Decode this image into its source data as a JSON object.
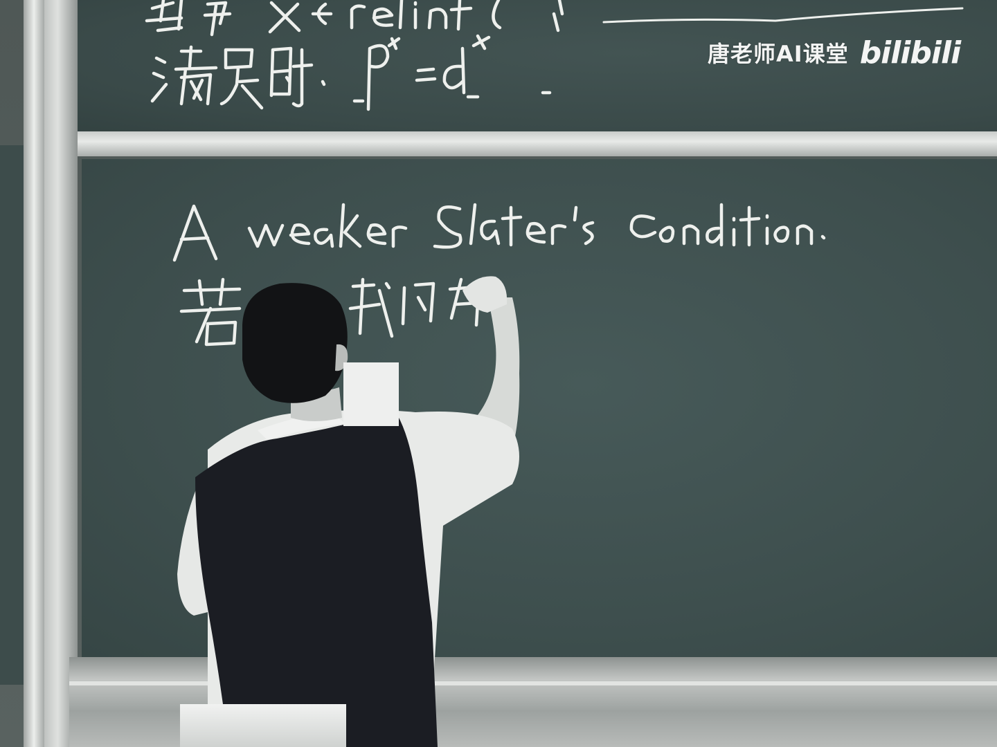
{
  "scene": {
    "description_tags": [
      "lecture-hall",
      "chalkboard",
      "lecturer-writing"
    ]
  },
  "chalkboard": {
    "top_panel_lines": [
      "当 ∃ x ∈ relint D, f(x)…",
      "满足时, p* = d*"
    ],
    "main_panel_lines": [
      "A weaker Slater's condition.",
      "若 … 我们有"
    ]
  },
  "watermark": {
    "text": "唐老师AI课堂",
    "logo": "bilibili"
  },
  "colors": {
    "board": "#3f504f",
    "chalk": "#f2f3f1",
    "rail": "#d9dbd9",
    "shirt": "#eef0ee",
    "vest": "#1c1e24",
    "hair": "#141516"
  }
}
